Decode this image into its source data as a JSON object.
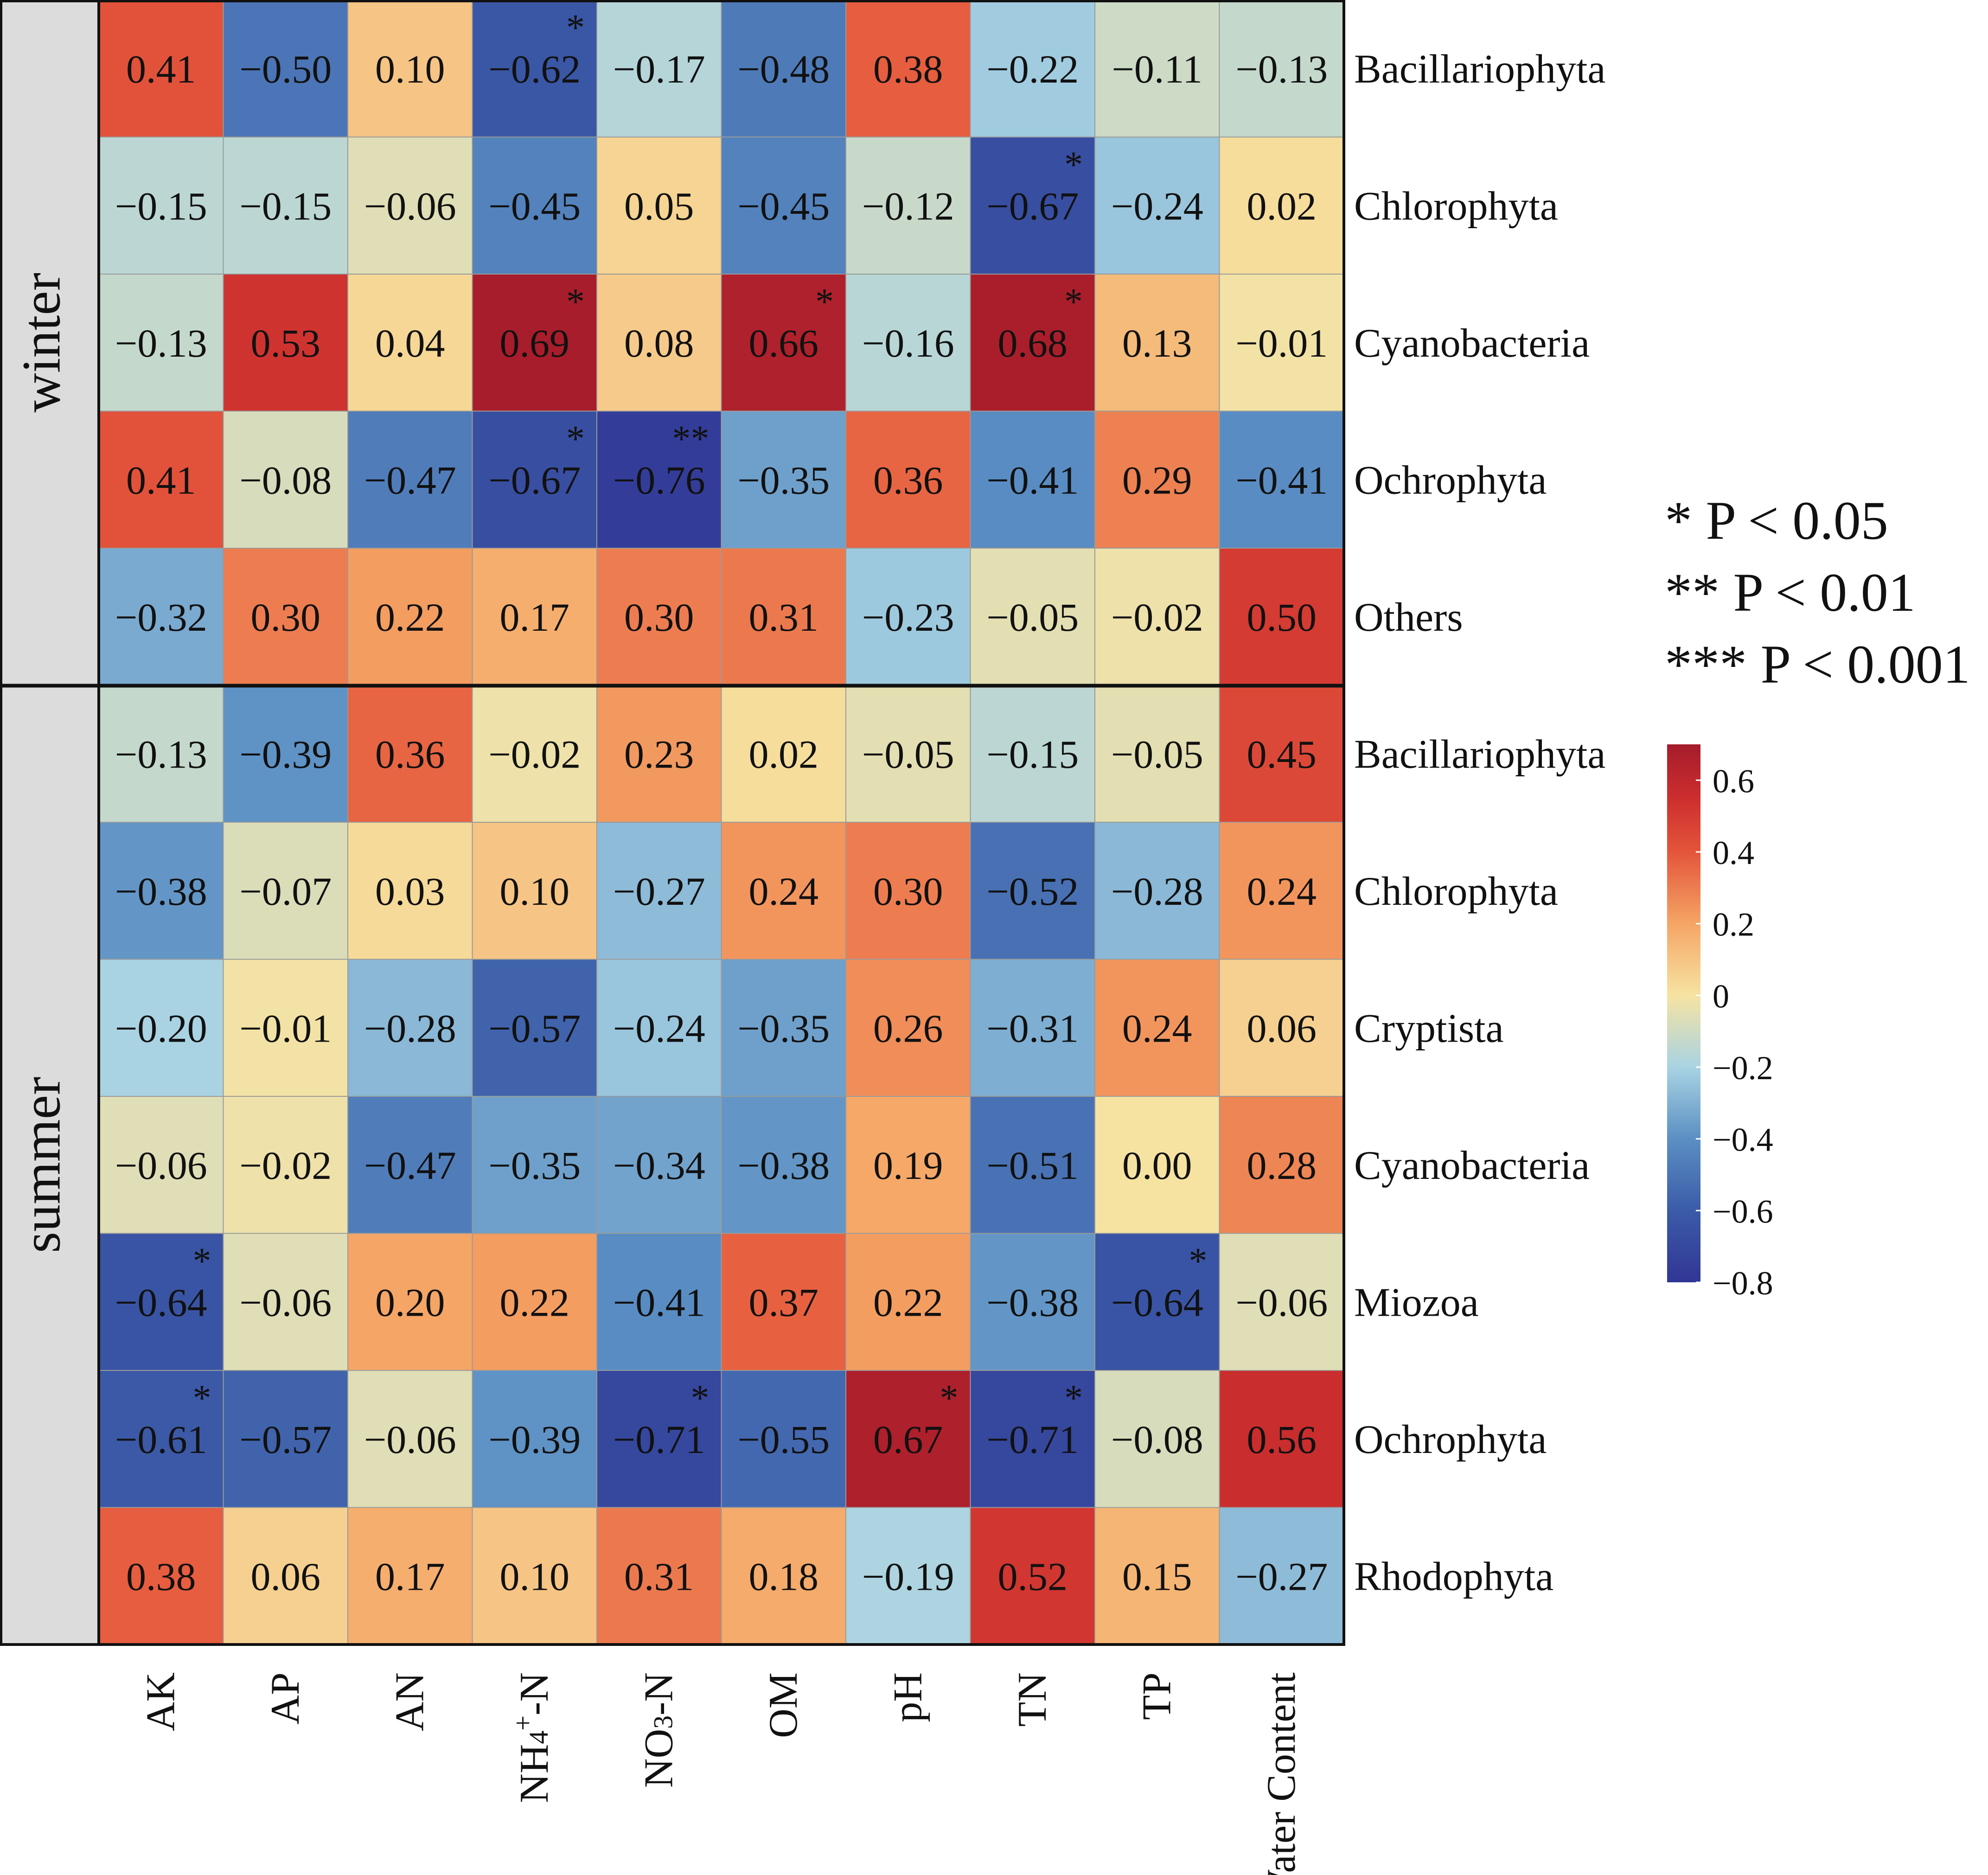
{
  "chart_data": {
    "type": "heatmap",
    "columns": [
      "AK",
      "AP",
      "AN",
      "NH4+-N",
      "NO3--N",
      "OM",
      "pH",
      "TN",
      "TP",
      "Water Content"
    ],
    "column_labels": [
      {
        "main": "AK",
        "sup": "",
        "sub": "",
        "tail": ""
      },
      {
        "main": "AP",
        "sup": "",
        "sub": "",
        "tail": ""
      },
      {
        "main": "AN",
        "sup": "",
        "sub": "",
        "tail": ""
      },
      {
        "main": "NH",
        "sub": "4",
        "sup": "+",
        "tail": "-N"
      },
      {
        "main": "NO",
        "sub": "3",
        "sup": "",
        "tail": "-N"
      },
      {
        "main": "OM",
        "sup": "",
        "sub": "",
        "tail": ""
      },
      {
        "main": "pH",
        "sup": "",
        "sub": "",
        "tail": ""
      },
      {
        "main": "TN",
        "sup": "",
        "sub": "",
        "tail": ""
      },
      {
        "main": "TP",
        "sup": "",
        "sub": "",
        "tail": ""
      },
      {
        "main": "Water Content",
        "sup": "",
        "sub": "",
        "tail": ""
      }
    ],
    "groups": [
      {
        "name": "winter",
        "rows": [
          {
            "label": "Bacillariophyta",
            "values": [
              0.41,
              -0.5,
              0.1,
              -0.62,
              -0.17,
              -0.48,
              0.38,
              -0.22,
              -0.11,
              -0.13
            ],
            "sig": [
              "",
              "",
              "",
              "*",
              "",
              "",
              "",
              "",
              "",
              ""
            ]
          },
          {
            "label": "Chlorophyta",
            "values": [
              -0.15,
              -0.15,
              -0.06,
              -0.45,
              0.05,
              -0.45,
              -0.12,
              -0.67,
              -0.24,
              0.02
            ],
            "sig": [
              "",
              "",
              "",
              "",
              "",
              "",
              "",
              "*",
              "",
              ""
            ]
          },
          {
            "label": "Cyanobacteria",
            "values": [
              -0.13,
              0.53,
              0.04,
              0.69,
              0.08,
              0.66,
              -0.16,
              0.68,
              0.13,
              -0.01
            ],
            "sig": [
              "",
              "",
              "",
              "*",
              "",
              "*",
              "",
              "*",
              "",
              ""
            ]
          },
          {
            "label": "Ochrophyta",
            "values": [
              0.41,
              -0.08,
              -0.47,
              -0.67,
              -0.76,
              -0.35,
              0.36,
              -0.41,
              0.29,
              -0.41
            ],
            "sig": [
              "",
              "",
              "",
              "*",
              "**",
              "",
              "",
              "",
              "",
              ""
            ]
          },
          {
            "label": "Others",
            "values": [
              -0.32,
              0.3,
              0.22,
              0.17,
              0.3,
              0.31,
              -0.23,
              -0.05,
              -0.02,
              0.5
            ],
            "sig": [
              "",
              "",
              "",
              "",
              "",
              "",
              "",
              "",
              "",
              ""
            ]
          }
        ]
      },
      {
        "name": "summer",
        "rows": [
          {
            "label": "Bacillariophyta",
            "values": [
              -0.13,
              -0.39,
              0.36,
              -0.02,
              0.23,
              0.02,
              -0.05,
              -0.15,
              -0.05,
              0.45
            ],
            "sig": [
              "",
              "",
              "",
              "",
              "",
              "",
              "",
              "",
              "",
              ""
            ]
          },
          {
            "label": "Chlorophyta",
            "values": [
              -0.38,
              -0.07,
              0.03,
              0.1,
              -0.27,
              0.24,
              0.3,
              -0.52,
              -0.28,
              0.24
            ],
            "sig": [
              "",
              "",
              "",
              "",
              "",
              "",
              "",
              "",
              "",
              ""
            ]
          },
          {
            "label": "Cryptista",
            "values": [
              -0.2,
              -0.01,
              -0.28,
              -0.57,
              -0.24,
              -0.35,
              0.26,
              -0.31,
              0.24,
              0.06
            ],
            "sig": [
              "",
              "",
              "",
              "",
              "",
              "",
              "",
              "",
              "",
              ""
            ]
          },
          {
            "label": "Cyanobacteria",
            "values": [
              -0.06,
              -0.02,
              -0.47,
              -0.35,
              -0.34,
              -0.38,
              0.19,
              -0.51,
              0.0,
              0.28
            ],
            "sig": [
              "",
              "",
              "",
              "",
              "",
              "",
              "",
              "",
              "",
              ""
            ]
          },
          {
            "label": "Miozoa",
            "values": [
              -0.64,
              -0.06,
              0.2,
              0.22,
              -0.41,
              0.37,
              0.22,
              -0.38,
              -0.64,
              -0.06
            ],
            "sig": [
              "*",
              "",
              "",
              "",
              "",
              "",
              "",
              "",
              "*",
              ""
            ]
          },
          {
            "label": "Ochrophyta",
            "values": [
              -0.61,
              -0.57,
              -0.06,
              -0.39,
              -0.71,
              -0.55,
              0.67,
              -0.71,
              -0.08,
              0.56
            ],
            "sig": [
              "*",
              "",
              "",
              "",
              "*",
              "",
              "*",
              "*",
              "",
              ""
            ]
          },
          {
            "label": "Rhodophyta",
            "values": [
              0.38,
              0.06,
              0.17,
              0.1,
              0.31,
              0.18,
              -0.19,
              0.52,
              0.15,
              -0.27
            ],
            "sig": [
              "",
              "",
              "",
              "",
              "",
              "",
              "",
              "",
              "",
              ""
            ]
          }
        ]
      }
    ],
    "significance_legend": [
      "* P < 0.05",
      "** P < 0.01",
      "*** P < 0.001"
    ],
    "colorbar": {
      "min": -0.8,
      "max": 0.7,
      "ticks": [
        0.6,
        0.4,
        0.2,
        0,
        -0.2,
        -0.4,
        -0.6,
        -0.8
      ],
      "tick_labels": [
        "0.6",
        "0.4",
        "0.2",
        "0",
        "−0.2",
        "−0.4",
        "−0.6",
        "−0.8"
      ],
      "colors": [
        {
          "v": -0.8,
          "c": "#313695"
        },
        {
          "v": -0.6,
          "c": "#3b5ba8"
        },
        {
          "v": -0.4,
          "c": "#5b8fc3"
        },
        {
          "v": -0.2,
          "c": "#a9d3e3"
        },
        {
          "v": 0.0,
          "c": "#f6e3a2"
        },
        {
          "v": 0.2,
          "c": "#f5a565"
        },
        {
          "v": 0.4,
          "c": "#e4553b"
        },
        {
          "v": 0.55,
          "c": "#cc2e2e"
        },
        {
          "v": 0.7,
          "c": "#a51c2b"
        }
      ]
    }
  }
}
